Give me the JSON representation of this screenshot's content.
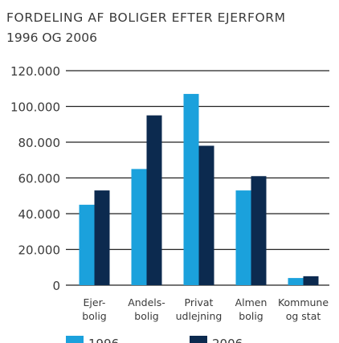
{
  "chart_data": {
    "type": "bar",
    "title": "FORDELING AF BOLIGER EFTER EJERFORM",
    "subtitle": "1996 OG 2006",
    "categories": [
      "Ejer-\nbolig",
      "Andels-\nbolig",
      "Privat\nudlejning",
      "Almen\nbolig",
      "Kommune\nog stat"
    ],
    "series": [
      {
        "name": "1996",
        "color": "#1ba1dc",
        "values": [
          45000,
          65000,
          107000,
          53000,
          4000
        ]
      },
      {
        "name": "2006",
        "color": "#0c2a4f",
        "values": [
          53000,
          95000,
          78000,
          61000,
          5000
        ]
      }
    ],
    "ylim": [
      0,
      120000
    ],
    "yticks": [
      {
        "value": 0,
        "label": "0"
      },
      {
        "value": 20000,
        "label": "20.000"
      },
      {
        "value": 40000,
        "label": "40.000"
      },
      {
        "value": 60000,
        "label": "60.000"
      },
      {
        "value": 80000,
        "label": "80.000"
      },
      {
        "value": 100000,
        "label": "100.000"
      },
      {
        "value": 120000,
        "label": "120.000"
      }
    ],
    "grid": true
  }
}
